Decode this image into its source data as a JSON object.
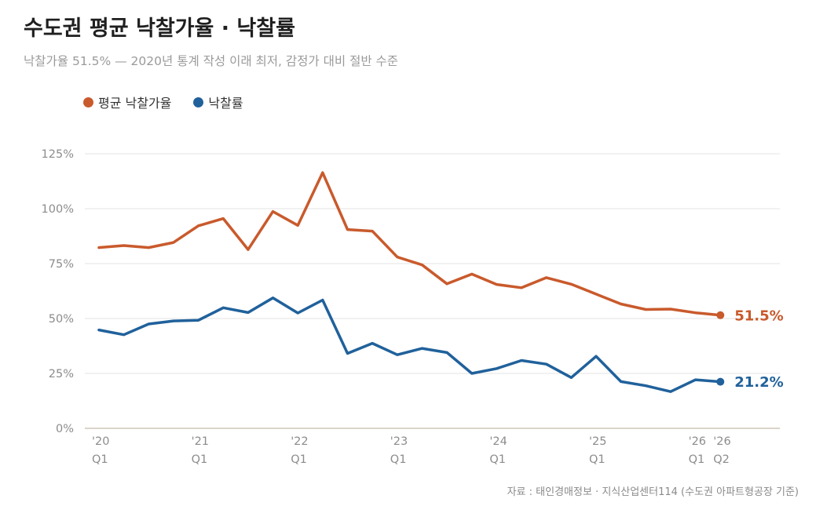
{
  "title": "수도권 평균 낙찰가율 · 낙찰률",
  "subtitle": "낙찰가율 51.5% — 2020년 통계 작성 이래 최저, 감정가 대비 절반 수준",
  "source": "자료 : 태인경매정보 · 지식산업센터114 (수도권 아파트형공장 기준)",
  "colors": {
    "series1": "#c95a2c",
    "series2": "#20619b",
    "grid": "#e3e3e3",
    "axis": "#cfc6b8"
  },
  "chart_data": {
    "type": "line",
    "x": [
      "2020 Q1",
      "2020 Q2",
      "2020 Q3",
      "2020 Q4",
      "2021 Q1",
      "2021 Q2",
      "2021 Q3",
      "2021 Q4",
      "2022 Q1",
      "2022 Q2",
      "2022 Q3",
      "2022 Q4",
      "2023 Q1",
      "2023 Q2",
      "2023 Q3",
      "2023 Q4",
      "2024 Q1",
      "2024 Q2",
      "2024 Q3",
      "2024 Q4",
      "2025 Q1",
      "2025 Q2",
      "2025 Q3",
      "2025 Q4",
      "2026 Q1",
      "2026 Q2"
    ],
    "x_ticks": [
      {
        "index": 0,
        "line1": "'20",
        "line2": "Q1"
      },
      {
        "index": 4,
        "line1": "'21",
        "line2": "Q1"
      },
      {
        "index": 8,
        "line1": "'22",
        "line2": "Q1"
      },
      {
        "index": 12,
        "line1": "'23",
        "line2": "Q1"
      },
      {
        "index": 16,
        "line1": "'24",
        "line2": "Q1"
      },
      {
        "index": 20,
        "line1": "'25",
        "line2": "Q1"
      },
      {
        "index": 24,
        "line1": "'26",
        "line2": "Q1"
      },
      {
        "index": 25,
        "line1": "'26",
        "line2": "Q2"
      }
    ],
    "y_ticks": [
      "0%",
      "25%",
      "50%",
      "75%",
      "100%",
      "125%"
    ],
    "ylim": [
      0,
      125
    ],
    "grid": true,
    "legend_position": "top-left",
    "series": [
      {
        "name": "평균 낙찰가율",
        "values": [
          82.3,
          83.2,
          82.3,
          84.6,
          92.2,
          95.5,
          81.4,
          98.7,
          92.4,
          116.4,
          90.5,
          89.8,
          78.0,
          74.4,
          65.8,
          70.2,
          65.5,
          64.0,
          68.6,
          65.6,
          61.1,
          56.6,
          54.1,
          54.3,
          52.6,
          51.5
        ],
        "end_label": "51.5%"
      },
      {
        "name": "낙찰률",
        "values": [
          44.8,
          42.6,
          47.5,
          48.9,
          49.2,
          54.9,
          52.7,
          59.4,
          52.5,
          58.4,
          34.1,
          38.7,
          33.5,
          36.4,
          34.5,
          25.0,
          27.2,
          30.9,
          29.2,
          23.1,
          32.8,
          21.3,
          19.4,
          16.7,
          22.1,
          21.2
        ],
        "end_label": "21.2%"
      }
    ]
  }
}
